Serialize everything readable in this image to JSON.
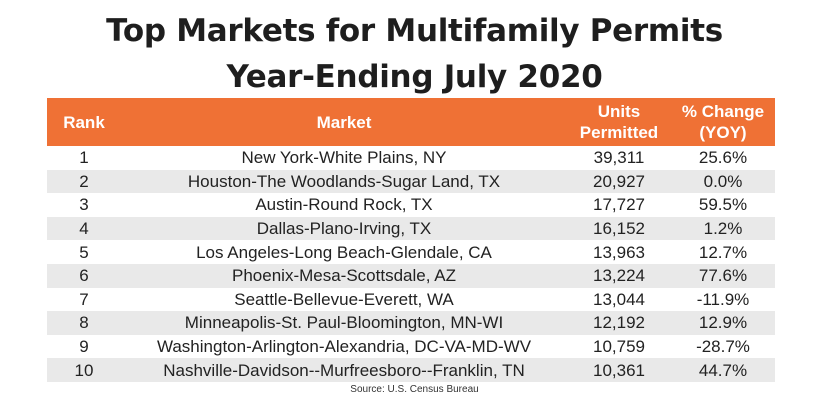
{
  "title": {
    "line1": "Top Markets for Multifamily Permits",
    "line2": "Year-Ending July 2020"
  },
  "colors": {
    "header_bg": "#ef7135",
    "header_text": "#ffffff",
    "stripe": "#e9e9e9"
  },
  "table": {
    "headers": {
      "rank": "Rank",
      "market": "Market",
      "units_line1": "Units",
      "units_line2": "Permitted",
      "change_line1": "% Change",
      "change_line2": "(YOY)"
    },
    "rows": [
      {
        "rank": "1",
        "market": "New York-White Plains, NY",
        "units": "39,311",
        "change": "25.6%"
      },
      {
        "rank": "2",
        "market": "Houston-The Woodlands-Sugar Land, TX",
        "units": "20,927",
        "change": "0.0%"
      },
      {
        "rank": "3",
        "market": "Austin-Round Rock, TX",
        "units": "17,727",
        "change": "59.5%"
      },
      {
        "rank": "4",
        "market": "Dallas-Plano-Irving, TX",
        "units": "16,152",
        "change": "1.2%"
      },
      {
        "rank": "5",
        "market": "Los Angeles-Long Beach-Glendale, CA",
        "units": "13,963",
        "change": "12.7%"
      },
      {
        "rank": "6",
        "market": "Phoenix-Mesa-Scottsdale, AZ",
        "units": "13,224",
        "change": "77.6%"
      },
      {
        "rank": "7",
        "market": "Seattle-Bellevue-Everett, WA",
        "units": "13,044",
        "change": "-11.9%"
      },
      {
        "rank": "8",
        "market": "Minneapolis-St. Paul-Bloomington, MN-WI",
        "units": "12,192",
        "change": "12.9%"
      },
      {
        "rank": "9",
        "market": "Washington-Arlington-Alexandria, DC-VA-MD-WV",
        "units": "10,759",
        "change": "-28.7%"
      },
      {
        "rank": "10",
        "market": "Nashville-Davidson--Murfreesboro--Franklin, TN",
        "units": "10,361",
        "change": "44.7%"
      }
    ]
  },
  "source": "Source: U.S. Census Bureau"
}
